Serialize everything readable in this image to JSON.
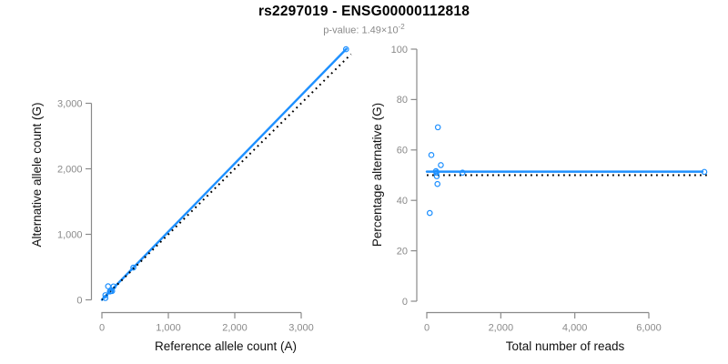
{
  "header": {
    "title": "rs2297019 - ENSG00000112818",
    "subtitle_prefix": "p-value: 1.49×10",
    "subtitle_exponent": "-2"
  },
  "colors": {
    "accent_blue": "#1E90FF",
    "reference_black": "#000000",
    "axis_gray": "#8a8a8a",
    "tick_label_gray": "#8a8a8a",
    "axis_title_color": "#111111",
    "title_color": "#000000",
    "subtitle_color": "#8a8a8a"
  },
  "chart_data": [
    {
      "type": "scatter",
      "title": "rs2297019 - ENSG00000112818",
      "xlabel": "Reference allele count (A)",
      "ylabel": "Alternative allele count (G)",
      "xlim": [
        0,
        3750
      ],
      "ylim": [
        0,
        3850
      ],
      "xticks": [
        0,
        1000,
        2000,
        3000
      ],
      "yticks": [
        0,
        1000,
        2000,
        3000
      ],
      "grid": false,
      "legend": "none",
      "point_style": "open-circle",
      "points": [
        [
          52,
          28
        ],
        [
          52,
          71
        ],
        [
          93,
          207
        ],
        [
          120,
          128
        ],
        [
          127,
          132
        ],
        [
          136,
          134
        ],
        [
          154,
          134
        ],
        [
          175,
          205
        ],
        [
          473,
          492
        ],
        [
          3675,
          3825
        ]
      ],
      "lines": [
        {
          "name": "fit-line",
          "style": "solid",
          "color_key": "accent_blue",
          "x1": 0,
          "y1": 0,
          "x2": 3680,
          "y2": 3830
        },
        {
          "name": "identity-line",
          "style": "dotted",
          "color_key": "reference_black",
          "x1": 0,
          "y1": 0,
          "x2": 3750,
          "y2": 3750
        }
      ]
    },
    {
      "type": "scatter",
      "title": "rs2297019 - ENSG00000112818",
      "xlabel": "Total number of reads",
      "ylabel": "Percentage alternative (G)",
      "xlim": [
        0,
        7600
      ],
      "ylim": [
        0,
        100
      ],
      "xticks": [
        0,
        2000,
        4000,
        6000
      ],
      "yticks": [
        0,
        20,
        40,
        60,
        80,
        100
      ],
      "grid": false,
      "legend": "none",
      "point_style": "open-circle",
      "points": [
        [
          80,
          35
        ],
        [
          123,
          58
        ],
        [
          300,
          69
        ],
        [
          248,
          51.6
        ],
        [
          259,
          51
        ],
        [
          270,
          49.6
        ],
        [
          288,
          46.5
        ],
        [
          380,
          54
        ],
        [
          965,
          51
        ],
        [
          7500,
          51.3
        ]
      ],
      "lines": [
        {
          "name": "fit-line",
          "style": "solid",
          "color_key": "accent_blue",
          "x1": 0,
          "y1": 51.4,
          "x2": 7450,
          "y2": 51.4
        },
        {
          "name": "reference-line",
          "style": "dotted",
          "color_key": "reference_black",
          "x1": 0,
          "y1": 50,
          "x2": 7600,
          "y2": 50
        }
      ]
    }
  ]
}
